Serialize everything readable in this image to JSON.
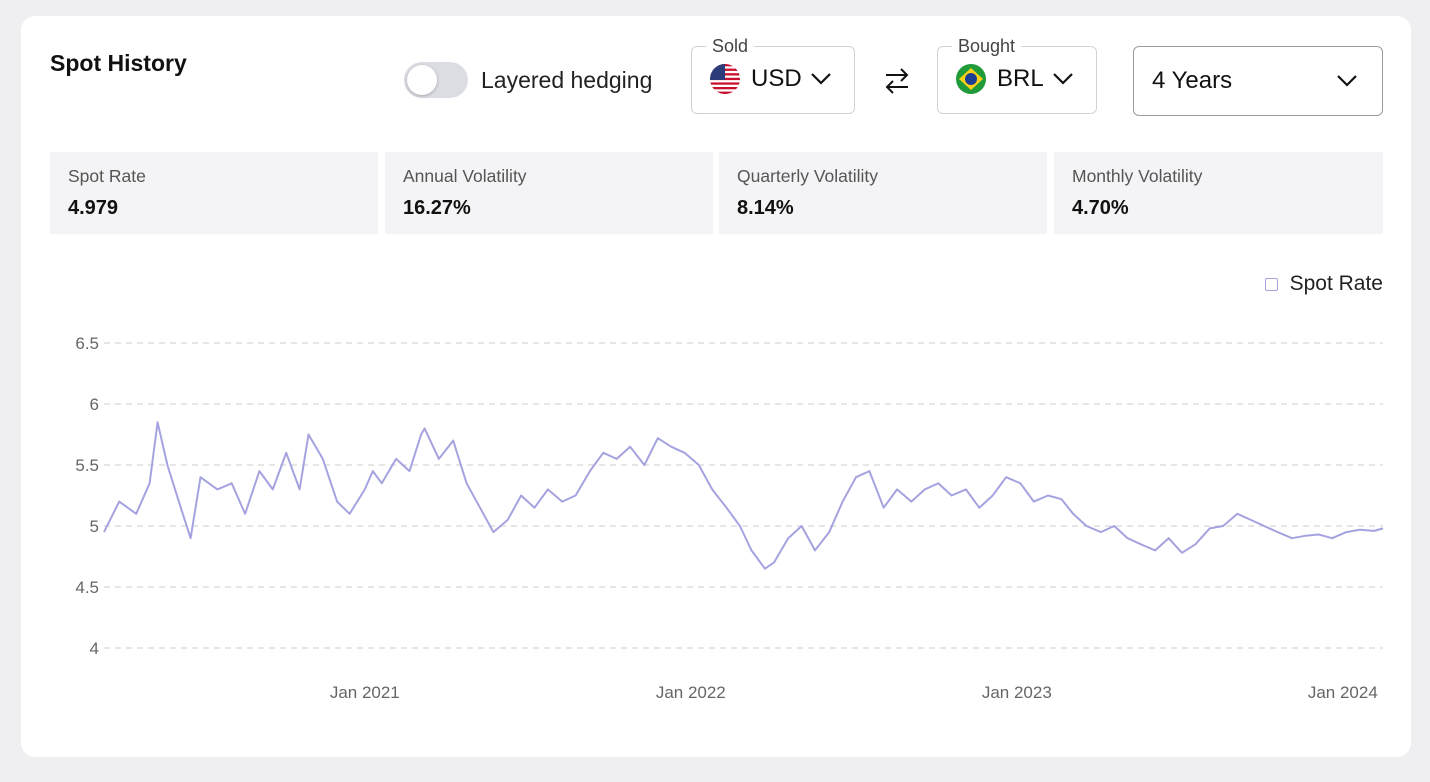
{
  "header": {
    "title": "Spot History",
    "toggle_label": "Layered hedging",
    "toggle_on": false,
    "sold": {
      "legend": "Sold",
      "currency": "USD",
      "flag_icon": "us-flag-icon"
    },
    "bought": {
      "legend": "Bought",
      "currency": "BRL",
      "flag_icon": "brazil-flag-icon"
    },
    "period": "4 Years"
  },
  "stats": [
    {
      "label": "Spot Rate",
      "value": "4.979"
    },
    {
      "label": "Annual Volatility",
      "value": "16.27%"
    },
    {
      "label": "Quarterly Volatility",
      "value": "8.14%"
    },
    {
      "label": "Monthly Volatility",
      "value": "4.70%"
    }
  ],
  "colors": {
    "line": "#a5a3df",
    "grid": "#d6d6d6",
    "accent": "#111111"
  },
  "chart_data": {
    "type": "line",
    "legend": "Spot Rate",
    "legend_position": "top-right",
    "grid": true,
    "ylim": [
      4,
      6.5
    ],
    "yticks": [
      4,
      4.5,
      5,
      5.5,
      6,
      6.5
    ],
    "ytick_labels": [
      "4",
      "4.5",
      "5",
      "5.5",
      "6",
      "6.5"
    ],
    "xlim": [
      "2020-03-15",
      "2024-02-15"
    ],
    "xticks": [
      "2021-01-01",
      "2022-01-01",
      "2023-01-01",
      "2024-01-01"
    ],
    "xtick_labels": [
      "Jan 2021",
      "Jan 2022",
      "Jan 2023",
      "Jan 2024"
    ],
    "series": [
      {
        "name": "Spot Rate",
        "x": [
          "2020-03-15",
          "2020-04-01",
          "2020-04-20",
          "2020-05-05",
          "2020-05-14",
          "2020-05-25",
          "2020-06-09",
          "2020-06-20",
          "2020-07-01",
          "2020-07-20",
          "2020-08-05",
          "2020-08-20",
          "2020-09-05",
          "2020-09-20",
          "2020-10-05",
          "2020-10-20",
          "2020-10-30",
          "2020-11-15",
          "2020-12-01",
          "2020-12-15",
          "2021-01-01",
          "2021-01-10",
          "2021-01-20",
          "2021-02-05",
          "2021-02-20",
          "2021-03-05",
          "2021-03-09",
          "2021-03-25",
          "2021-04-10",
          "2021-04-25",
          "2021-05-10",
          "2021-05-25",
          "2021-06-10",
          "2021-06-25",
          "2021-07-10",
          "2021-07-25",
          "2021-08-10",
          "2021-08-25",
          "2021-09-10",
          "2021-09-25",
          "2021-10-10",
          "2021-10-25",
          "2021-11-10",
          "2021-11-25",
          "2021-12-10",
          "2021-12-25",
          "2022-01-10",
          "2022-01-25",
          "2022-02-10",
          "2022-02-25",
          "2022-03-10",
          "2022-03-25",
          "2022-04-04",
          "2022-04-20",
          "2022-05-05",
          "2022-05-20",
          "2022-06-05",
          "2022-06-20",
          "2022-07-05",
          "2022-07-20",
          "2022-08-05",
          "2022-08-20",
          "2022-09-05",
          "2022-09-20",
          "2022-10-05",
          "2022-10-20",
          "2022-11-05",
          "2022-11-20",
          "2022-12-05",
          "2022-12-20",
          "2023-01-05",
          "2023-01-20",
          "2023-02-05",
          "2023-02-20",
          "2023-03-05",
          "2023-03-20",
          "2023-04-05",
          "2023-04-20",
          "2023-05-05",
          "2023-05-20",
          "2023-06-05",
          "2023-06-20",
          "2023-07-05",
          "2023-07-20",
          "2023-08-05",
          "2023-08-20",
          "2023-09-05",
          "2023-09-20",
          "2023-10-05",
          "2023-10-20",
          "2023-11-05",
          "2023-11-20",
          "2023-12-05",
          "2023-12-20",
          "2024-01-05",
          "2024-01-20",
          "2024-02-05",
          "2024-02-15"
        ],
        "values": [
          4.95,
          5.2,
          5.1,
          5.35,
          5.85,
          5.5,
          5.15,
          4.9,
          5.4,
          5.3,
          5.35,
          5.1,
          5.45,
          5.3,
          5.6,
          5.3,
          5.75,
          5.55,
          5.2,
          5.1,
          5.3,
          5.45,
          5.35,
          5.55,
          5.45,
          5.75,
          5.8,
          5.55,
          5.7,
          5.35,
          5.15,
          4.95,
          5.05,
          5.25,
          5.15,
          5.3,
          5.2,
          5.25,
          5.45,
          5.6,
          5.55,
          5.65,
          5.5,
          5.72,
          5.65,
          5.6,
          5.5,
          5.3,
          5.15,
          5.0,
          4.8,
          4.65,
          4.7,
          4.9,
          5.0,
          4.8,
          4.95,
          5.2,
          5.4,
          5.45,
          5.15,
          5.3,
          5.2,
          5.3,
          5.35,
          5.25,
          5.3,
          5.15,
          5.25,
          5.4,
          5.35,
          5.2,
          5.25,
          5.22,
          5.1,
          5.0,
          4.95,
          5.0,
          4.9,
          4.85,
          4.8,
          4.9,
          4.78,
          4.85,
          4.98,
          5.0,
          5.1,
          5.05,
          5.0,
          4.95,
          4.9,
          4.92,
          4.93,
          4.9,
          4.95,
          4.97,
          4.96,
          4.98
        ]
      }
    ]
  }
}
